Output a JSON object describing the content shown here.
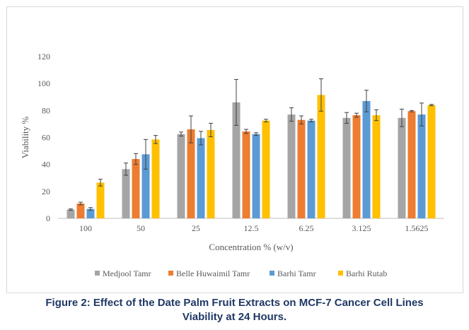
{
  "chart_data": {
    "type": "bar",
    "categories": [
      "100",
      "50",
      "25",
      "12.5",
      "6.25",
      "3.125",
      "1.5625"
    ],
    "series": [
      {
        "name": "Medjool Tamr",
        "color": "#a5a5a5",
        "values": [
          6.5,
          36.5,
          62.5,
          86,
          77,
          74.5,
          74.5
        ],
        "errors": [
          0.5,
          4.5,
          1.5,
          17,
          5,
          4,
          6.5
        ]
      },
      {
        "name": "Belle Huwaimil Tamr",
        "color": "#ed7d31",
        "values": [
          11,
          44,
          66,
          64.5,
          73,
          76.5,
          79.5
        ],
        "errors": [
          1,
          4,
          10,
          1.5,
          3,
          1.5,
          0.5
        ]
      },
      {
        "name": "Barhi Tamr",
        "color": "#5b9bd5",
        "values": [
          7,
          47.5,
          59.5,
          62.5,
          72.5,
          87,
          77
        ],
        "errors": [
          1,
          11,
          5,
          1,
          1,
          8,
          8.5
        ]
      },
      {
        "name": "Barhi Rutab",
        "color": "#ffc000",
        "values": [
          26.5,
          58.5,
          65.5,
          72.5,
          91.5,
          76.5,
          84
        ],
        "errors": [
          2.5,
          3,
          5,
          1,
          12,
          4,
          0.5
        ]
      }
    ],
    "xlabel": "Concentration % (w/v)",
    "ylabel": "Viability %",
    "ylim": [
      0,
      120
    ],
    "yticks": [
      "0",
      "20",
      "40",
      "60",
      "80",
      "100",
      "120"
    ],
    "grid": false,
    "legend_position": "bottom"
  },
  "caption": {
    "line1": "Figure 2: Effect of the Date Palm Fruit Extracts on MCF-7 Cancer Cell Lines",
    "line2": "Viability at 24 Hours."
  }
}
